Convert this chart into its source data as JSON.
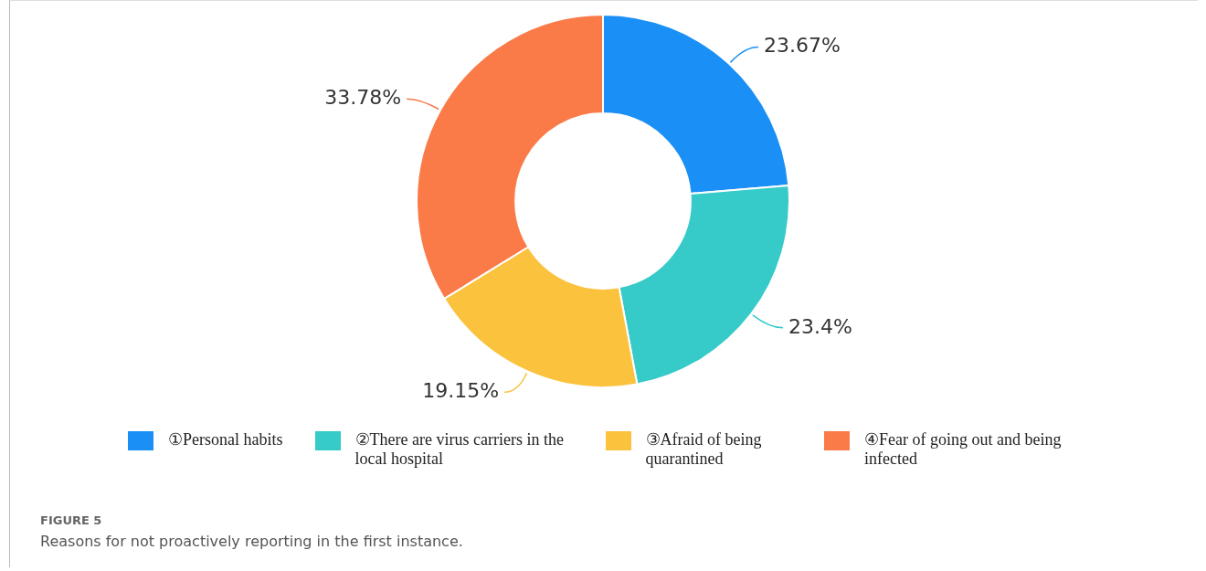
{
  "chart_data": {
    "type": "donut",
    "title": "Reasons for not proactively reporting in the first instance.",
    "annotations": [
      "FIGURE 5"
    ],
    "categories": [
      "①Personal habits",
      "②There are virus carriers in the local hospital",
      "③Afraid of being quarantined",
      "④Fear of going out and being infected"
    ],
    "values": [
      23.67,
      23.4,
      19.15,
      33.78
    ],
    "colors": [
      "#1a8ff5",
      "#36cbc8",
      "#fbc23e",
      "#fa7b48"
    ],
    "value_labels": [
      "23.67%",
      "23.4%",
      "19.15%",
      "33.78%"
    ],
    "legend": "bottom"
  }
}
